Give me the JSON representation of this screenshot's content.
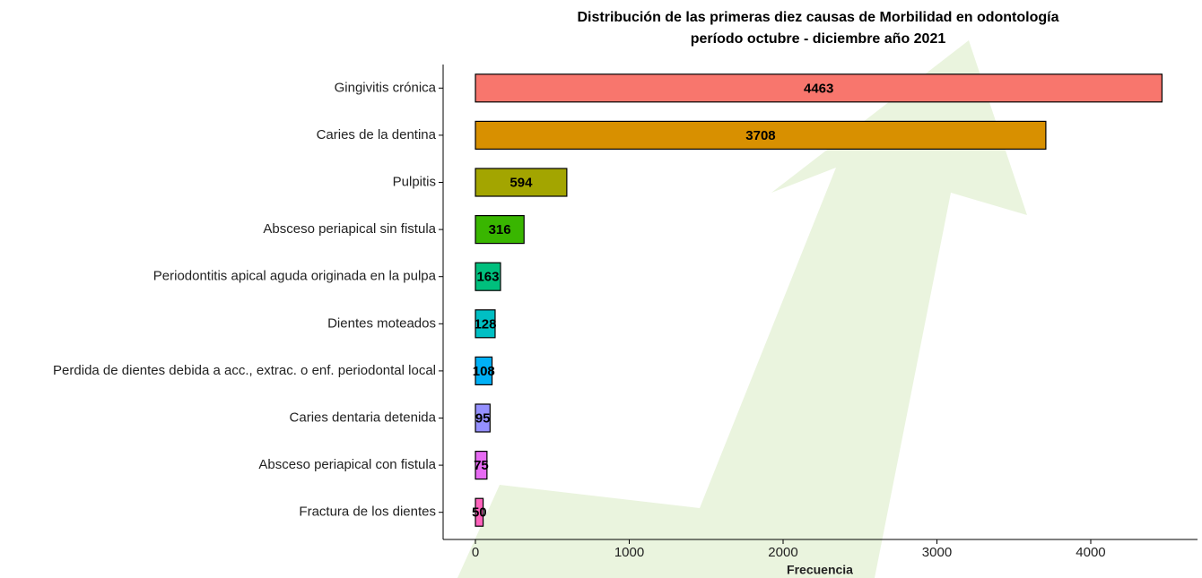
{
  "chart_data": {
    "type": "bar",
    "orientation": "horizontal",
    "title": [
      "Distribución de las primeras diez causas de Morbilidad en odontología",
      "período octubre - diciembre año 2021"
    ],
    "x_label": "Frecuencia",
    "categories": [
      "Gingivitis crónica",
      "Caries de la dentina",
      "Pulpitis",
      "Absceso periapical sin fistula",
      "Periodontitis apical aguda originada en la pulpa",
      "Dientes moteados",
      "Perdida de dientes debida a acc., extrac. o enf. periodontal local",
      "Caries dentaria detenida",
      "Absceso periapical con fistula",
      "Fractura de los dientes"
    ],
    "values": [
      4463,
      3708,
      594,
      316,
      163,
      128,
      108,
      95,
      75,
      50
    ],
    "colors": [
      "#F8766D",
      "#D89000",
      "#A3A500",
      "#39B600",
      "#00BF7D",
      "#00BFC4",
      "#00B0F6",
      "#9590FF",
      "#E76BF3",
      "#FF62BC"
    ],
    "xlim": [
      -210,
      4694
    ],
    "xticks": [
      0,
      1000,
      2000,
      3000,
      4000
    ],
    "grid": false
  }
}
